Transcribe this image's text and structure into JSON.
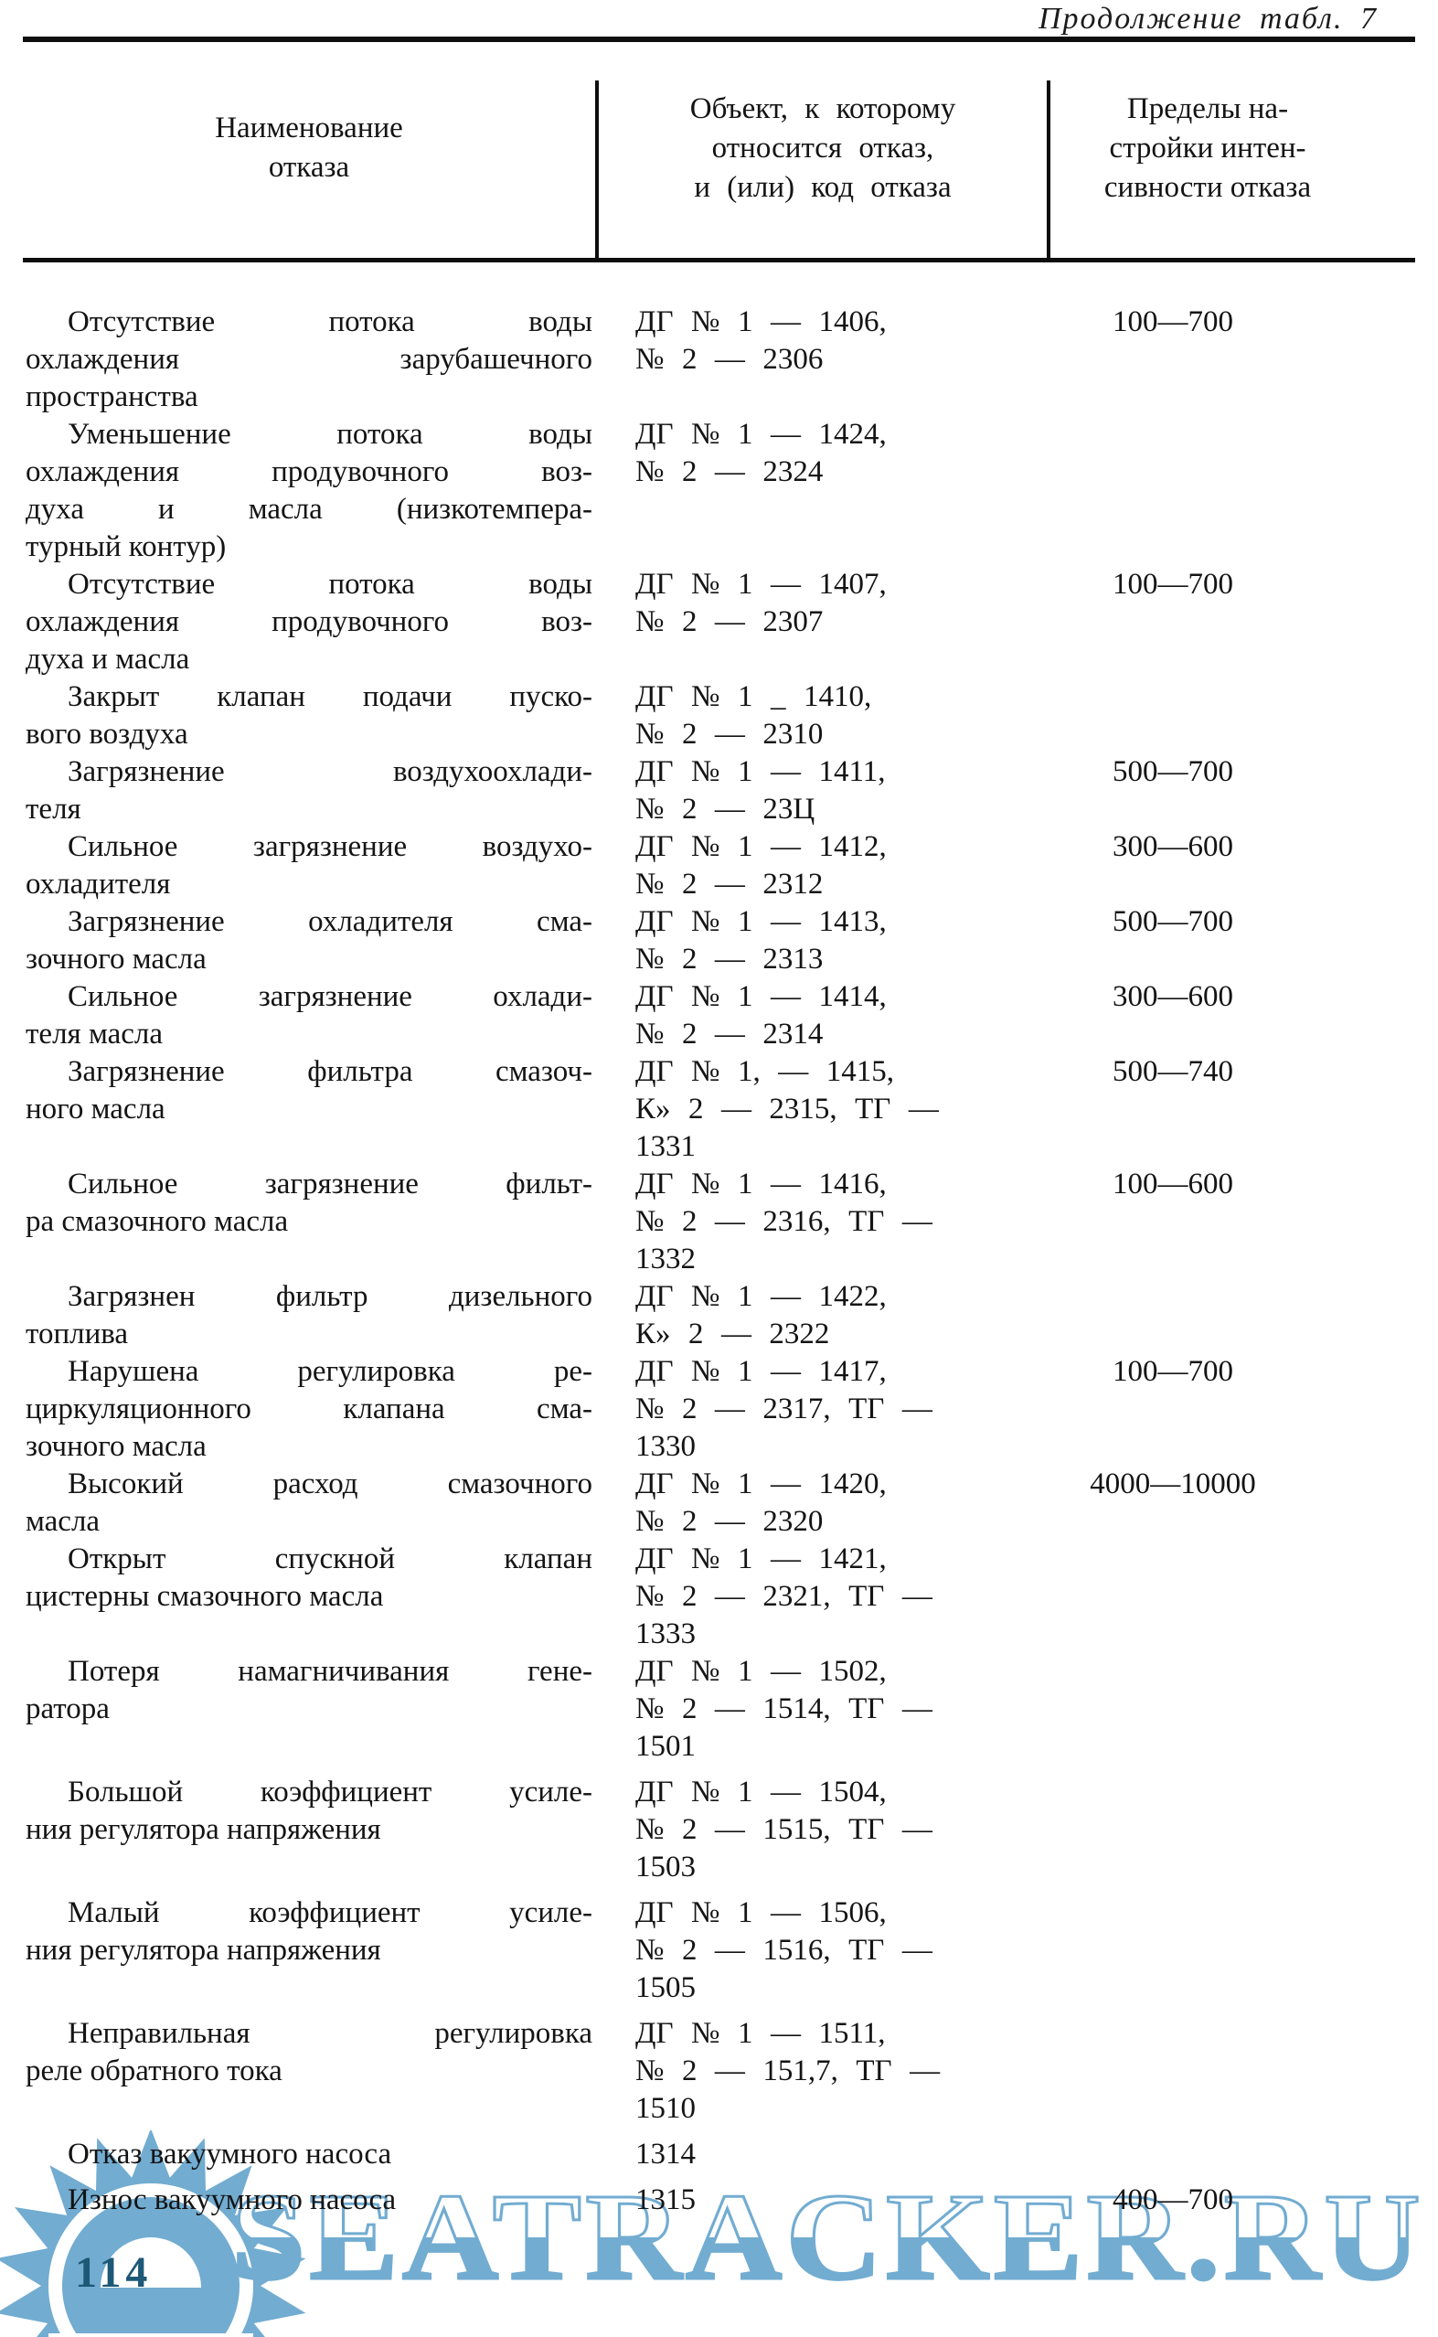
{
  "page": {
    "continuation": "Продолжение табл. 7",
    "page_number": "114",
    "watermark_text": "SEATRACKER.RU",
    "watermark_color": "#72acd1"
  },
  "table": {
    "header": {
      "col1": [
        "Наименование",
        "отказа"
      ],
      "col2": [
        "Объект, к которому",
        "относится отказ,",
        "и (или) код отказа"
      ],
      "col3": [
        "Пределы на-",
        "стройки интен-",
        "сивности отказа"
      ]
    },
    "rows": [
      {
        "name": [
          "Отсутствие потока воды",
          "охлаждения зарубашечного",
          "пространства"
        ],
        "code": [
          "ДГ № 1 — 1406,",
          "№ 2 — 2306"
        ],
        "limits": "100—700"
      },
      {
        "name": [
          "Уменьшение потока воды",
          "охлаждения продувочного воз-",
          "духа и масла (низкотемпера-",
          "турный контур)"
        ],
        "code": [
          "ДГ № 1 — 1424,",
          "№ 2 — 2324"
        ],
        "limits": ""
      },
      {
        "name": [
          "Отсутствие потока воды",
          "охлаждения продувочного воз-",
          "духа и масла"
        ],
        "code": [
          "ДГ № 1 — 1407,",
          "№ 2 — 2307"
        ],
        "limits": "100—700"
      },
      {
        "name": [
          "Закрыт клапан подачи пуско-",
          "вого воздуха"
        ],
        "code": [
          "ДГ № 1 _ 1410,",
          "№ 2 — 2310"
        ],
        "limits": ""
      },
      {
        "name": [
          "Загрязнение воздухоохлади-",
          "теля"
        ],
        "code": [
          "ДГ № 1 — 1411,",
          "№ 2 — 23Ц"
        ],
        "limits": "500—700"
      },
      {
        "name": [
          "Сильное загрязнение воздухо-",
          "охладителя"
        ],
        "code": [
          "ДГ № 1 — 1412,",
          "№ 2 — 2312"
        ],
        "limits": "300—600"
      },
      {
        "name": [
          "Загрязнение охладителя сма-",
          "зочного масла"
        ],
        "code": [
          "ДГ № 1 — 1413,",
          "№ 2 — 2313"
        ],
        "limits": "500—700"
      },
      {
        "name": [
          "Сильное загрязнение охлади-",
          "теля масла"
        ],
        "code": [
          "ДГ № 1 — 1414,",
          "№ 2 — 2314"
        ],
        "limits": "300—600"
      },
      {
        "name": [
          "Загрязнение фильтра смазоч-",
          "ного масла"
        ],
        "code": [
          "ДГ № 1, — 1415,",
          "К» 2 — 2315, ТГ —",
          "1331"
        ],
        "limits": "500—740"
      },
      {
        "name": [
          "Сильное загрязнение фильт-",
          "ра смазочного масла"
        ],
        "code": [
          "ДГ № 1 — 1416,",
          "№ 2 — 2316, ТГ —",
          "1332"
        ],
        "limits": "100—600"
      },
      {
        "name": [
          "Загрязнен фильтр дизельного",
          "топлива"
        ],
        "code": [
          "ДГ № 1 — 1422,",
          "К» 2 — 2322"
        ],
        "limits": ""
      },
      {
        "name": [
          "Нарушена регулировка ре-",
          "циркуляционного клапана сма-",
          "зочного масла"
        ],
        "code": [
          "ДГ № 1 — 1417,",
          "№ 2 — 2317, ТГ —",
          "1330"
        ],
        "limits": "100—700"
      },
      {
        "name": [
          "Высокий расход смазочного",
          "масла"
        ],
        "code": [
          "ДГ № 1 — 1420,",
          "№ 2 — 2320"
        ],
        "limits": "4000—10000"
      },
      {
        "name": [
          "Открыт спускной клапан",
          "цистерны смазочного масла"
        ],
        "code": [
          "ДГ № 1 — 1421,",
          "№ 2 — 2321, ТГ —",
          "1333"
        ],
        "limits": ""
      },
      {
        "name": [
          "Потеря намагничивания гене-",
          "ратора"
        ],
        "code": [
          "ДГ № 1 — 1502,",
          "№ 2 — 1514, ТГ —",
          "1501"
        ],
        "limits": ""
      },
      {
        "name": [
          "Большой коэффициент усиле-",
          "ния регулятора напряжения"
        ],
        "code": [
          "ДГ № 1 — 1504,",
          "№ 2 — 1515, ТГ —",
          "1503"
        ],
        "limits": ""
      },
      {
        "name": [
          "Малый коэффициент усиле-",
          "ния регулятора напряжения"
        ],
        "code": [
          "ДГ № 1 — 1506,",
          "№ 2 — 1516, ТГ —",
          "1505"
        ],
        "limits": ""
      },
      {
        "name": [
          "Неправильная регулировка",
          "реле обратного тока"
        ],
        "code": [
          "ДГ № 1 — 1511,",
          "№ 2 — 151,7, ТГ —",
          "1510"
        ],
        "limits": ""
      },
      {
        "name": [
          "Отказ вакуумного насоса"
        ],
        "code": [
          "1314"
        ],
        "limits": ""
      },
      {
        "name": [
          "Износ вакуумного насоса"
        ],
        "code": [
          "1315"
        ],
        "limits": "400—700"
      }
    ]
  }
}
